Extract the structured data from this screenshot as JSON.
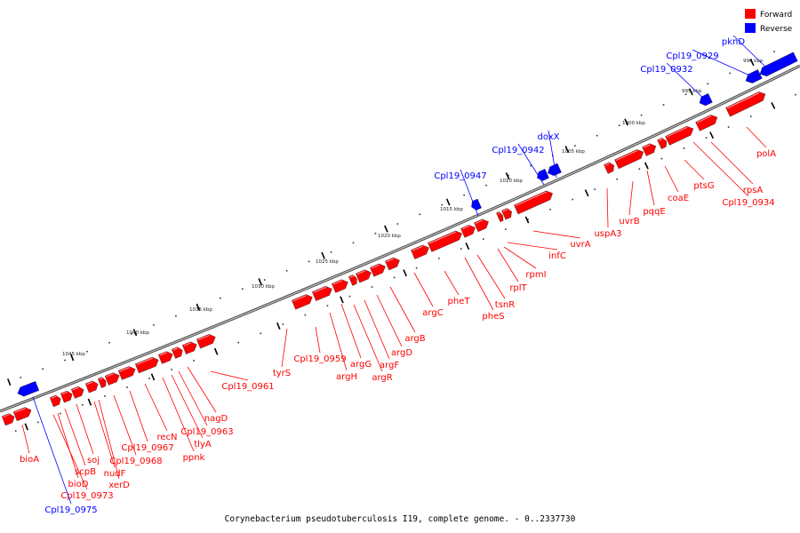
{
  "caption": "Corynebacterium pseudotuberculosis I19, complete genome. - 0..2337730",
  "legend": {
    "forward_label": "Forward",
    "reverse_label": "Reverse",
    "forward_color": "#ff0000",
    "reverse_color": "#0000ff"
  },
  "colors": {
    "forward": "#ff0000",
    "reverse": "#0000ff",
    "backbone": "#8c8c8c"
  },
  "ticks": [
    "990 kbp",
    "995 kbp",
    "1000 kbp",
    "1005 kbp",
    "1010 kbp",
    "1015 kbp",
    "1020 kbp",
    "1025 kbp",
    "1030 kbp",
    "1035 kbp",
    "1040 kbp",
    "1045 kbp"
  ],
  "genes": {
    "forward": [
      "bioA",
      "bioD",
      "scpB",
      "soj",
      "Cpl19_0973",
      "xerD",
      "nudF",
      "Cpl19_0968",
      "Cpl19_0967",
      "recN",
      "ppnk",
      "tlyA",
      "Cpl19_0963",
      "nagD",
      "Cpl19_0961",
      "tyrS",
      "Cpl19_0959",
      "argH",
      "argG",
      "argR",
      "argF",
      "argD",
      "argB",
      "argC",
      "pheT",
      "pheS",
      "tsnR",
      "rplT",
      "rpmI",
      "infC",
      "uvrA",
      "uspA3",
      "uvrB",
      "pqqE",
      "coaE",
      "ptsG",
      "Cpl19_0934",
      "rpsA",
      "polA"
    ],
    "reverse": [
      "Cpl19_0975",
      "Cpl19_0947",
      "Cpl19_0942",
      "doxX",
      "Cpl19_0932",
      "Cpl19_0929",
      "pknD"
    ]
  }
}
